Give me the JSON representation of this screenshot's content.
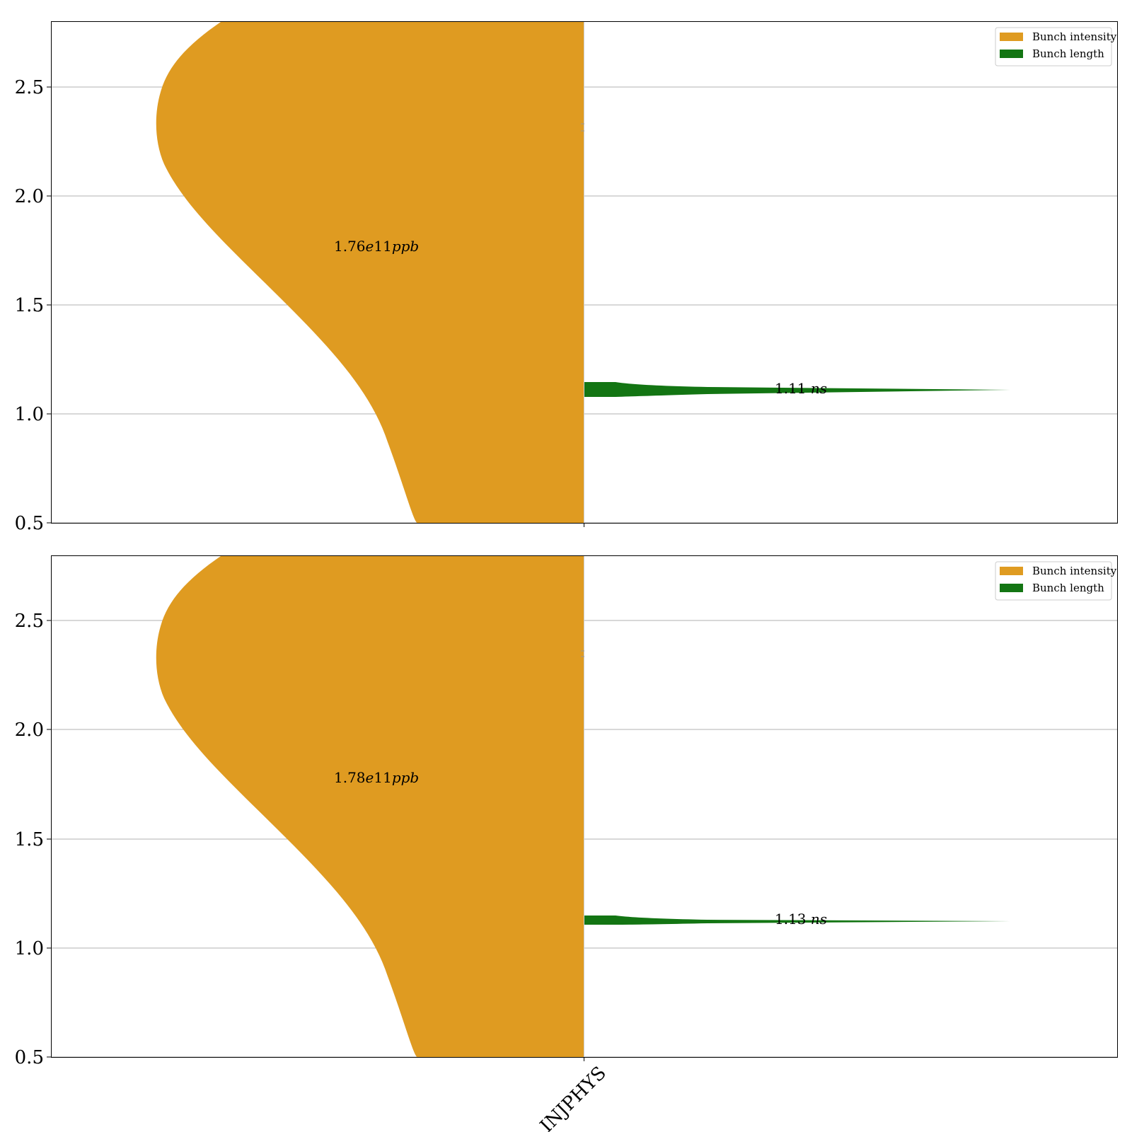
{
  "chart_data": [
    {
      "type": "violin",
      "category": "INJPHYS",
      "ylim": [
        0.5,
        2.8
      ],
      "yticks": [
        "0.5",
        "1.0",
        "1.5",
        "2.0",
        "2.5"
      ],
      "grid": true,
      "legend": {
        "placement": "top-right",
        "entries": [
          {
            "label": "Bunch intensity",
            "color": "#df9b21"
          },
          {
            "label": "Bunch length",
            "color": "#137513"
          }
        ]
      },
      "series": [
        {
          "name": "Bunch intensity",
          "side": "left",
          "annotation_value": "1.76",
          "annotation_exp": "e",
          "annotation_num": "11",
          "annotation_unit": "ppb",
          "annotation_y": 1.76,
          "median": 2.3
        },
        {
          "name": "Bunch length",
          "side": "right",
          "annotation_value": "1.11",
          "annotation_unit": "ns",
          "annotation_y": 1.11,
          "median": 1.11
        }
      ]
    },
    {
      "type": "violin",
      "category": "INJPHYS",
      "ylim": [
        0.5,
        2.8
      ],
      "yticks": [
        "0.5",
        "1.0",
        "1.5",
        "2.0",
        "2.5"
      ],
      "grid": true,
      "legend": {
        "placement": "top-right",
        "entries": [
          {
            "label": "Bunch intensity",
            "color": "#df9b21"
          },
          {
            "label": "Bunch length",
            "color": "#137513"
          }
        ]
      },
      "series": [
        {
          "name": "Bunch intensity",
          "side": "left",
          "annotation_value": "1.78",
          "annotation_exp": "e",
          "annotation_num": "11",
          "annotation_unit": "ppb",
          "annotation_y": 1.78,
          "median": 2.32
        },
        {
          "name": "Bunch length",
          "side": "right",
          "annotation_value": "1.13",
          "annotation_unit": "ns",
          "annotation_y": 1.13,
          "median": 1.13
        }
      ]
    }
  ],
  "xtick_label": "INJPHYS"
}
